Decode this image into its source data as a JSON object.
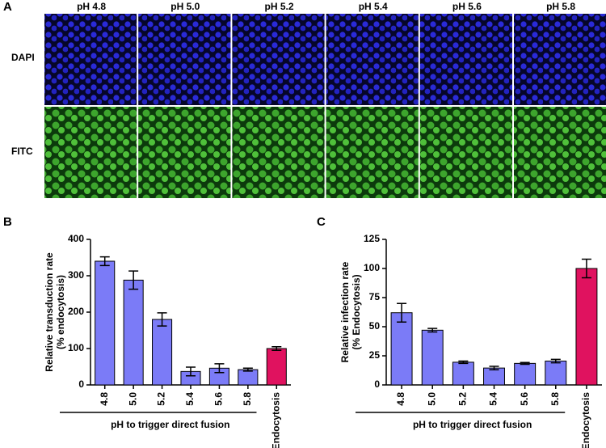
{
  "panel_a": {
    "label": "A",
    "columns": [
      "pH 4.8",
      "pH 5.0",
      "pH 5.2",
      "pH 5.4",
      "pH 5.6",
      "pH 5.8"
    ],
    "rows": [
      "DAPI",
      "FITC"
    ]
  },
  "chart_data": [
    {
      "type": "bar",
      "label": "B",
      "ylabel": [
        "Relative transduction rate",
        "(% endocytosis)"
      ],
      "categories": [
        "4.8",
        "5.0",
        "5.2",
        "5.4",
        "5.6",
        "5.8",
        "Endocytosis"
      ],
      "values": [
        340,
        288,
        180,
        37,
        46,
        42,
        100
      ],
      "errors": [
        12,
        25,
        18,
        12,
        12,
        4,
        5
      ],
      "colors": [
        "#7b7bf7",
        "#7b7bf7",
        "#7b7bf7",
        "#7b7bf7",
        "#7b7bf7",
        "#7b7bf7",
        "#e0125f"
      ],
      "ylim": [
        0,
        400
      ],
      "yticks": [
        0,
        100,
        200,
        300,
        400
      ],
      "group_label": "pH to trigger direct fusion"
    },
    {
      "type": "bar",
      "label": "C",
      "ylabel": [
        "Relative infection rate",
        "(% Endocytosis)"
      ],
      "categories": [
        "4.8",
        "5.0",
        "5.2",
        "5.4",
        "5.6",
        "5.8",
        "Endocytosis"
      ],
      "values": [
        62,
        47,
        19.5,
        14.5,
        18.5,
        20.5,
        100
      ],
      "errors": [
        8,
        1.5,
        1,
        1.5,
        0.8,
        1.5,
        8
      ],
      "colors": [
        "#7b7bf7",
        "#7b7bf7",
        "#7b7bf7",
        "#7b7bf7",
        "#7b7bf7",
        "#7b7bf7",
        "#e0125f"
      ],
      "ylim": [
        0,
        125
      ],
      "yticks": [
        0,
        25,
        50,
        75,
        100,
        125
      ],
      "group_label": "pH to trigger direct fusion"
    }
  ]
}
